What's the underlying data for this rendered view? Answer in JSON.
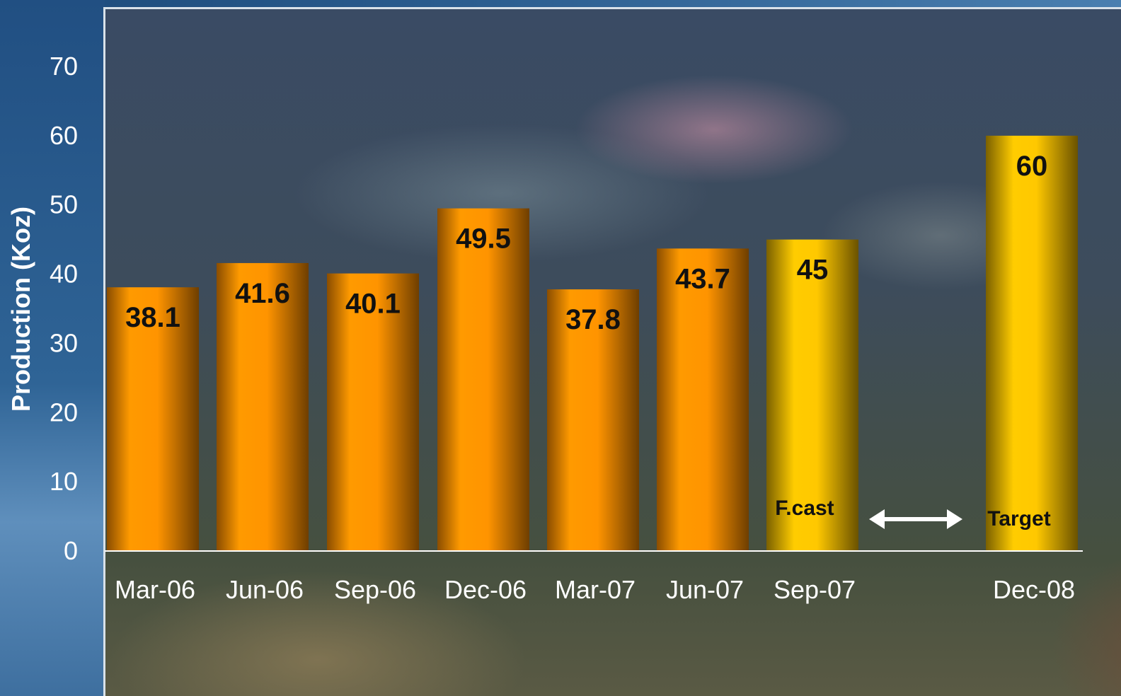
{
  "chart_data": {
    "type": "bar",
    "categories": [
      "Mar-06",
      "Jun-06",
      "Sep-06",
      "Dec-06",
      "Mar-07",
      "Jun-07",
      "Sep-07",
      "Dec-08"
    ],
    "values": [
      38.1,
      41.6,
      40.1,
      49.5,
      37.8,
      43.7,
      45,
      60
    ],
    "value_labels": [
      "38.1",
      "41.6",
      "40.1",
      "49.5",
      "37.8",
      "43.7",
      "45",
      "60"
    ],
    "bar_kind": [
      "actual",
      "actual",
      "actual",
      "actual",
      "actual",
      "actual",
      "forecast",
      "target"
    ],
    "title": "",
    "xlabel": "",
    "ylabel": "Production (Koz)",
    "ylim": [
      0,
      70
    ],
    "yticks": [
      0,
      10,
      20,
      30,
      40,
      50,
      60,
      70
    ],
    "grid": false,
    "annotations": {
      "forecast": "F.cast",
      "target": "Target"
    },
    "colors": {
      "actual": "#ff9900",
      "actual_dark": "#7a4500",
      "forecast": "#ffcc00",
      "forecast_dark": "#6e5500",
      "axis": "#ffffff"
    }
  }
}
